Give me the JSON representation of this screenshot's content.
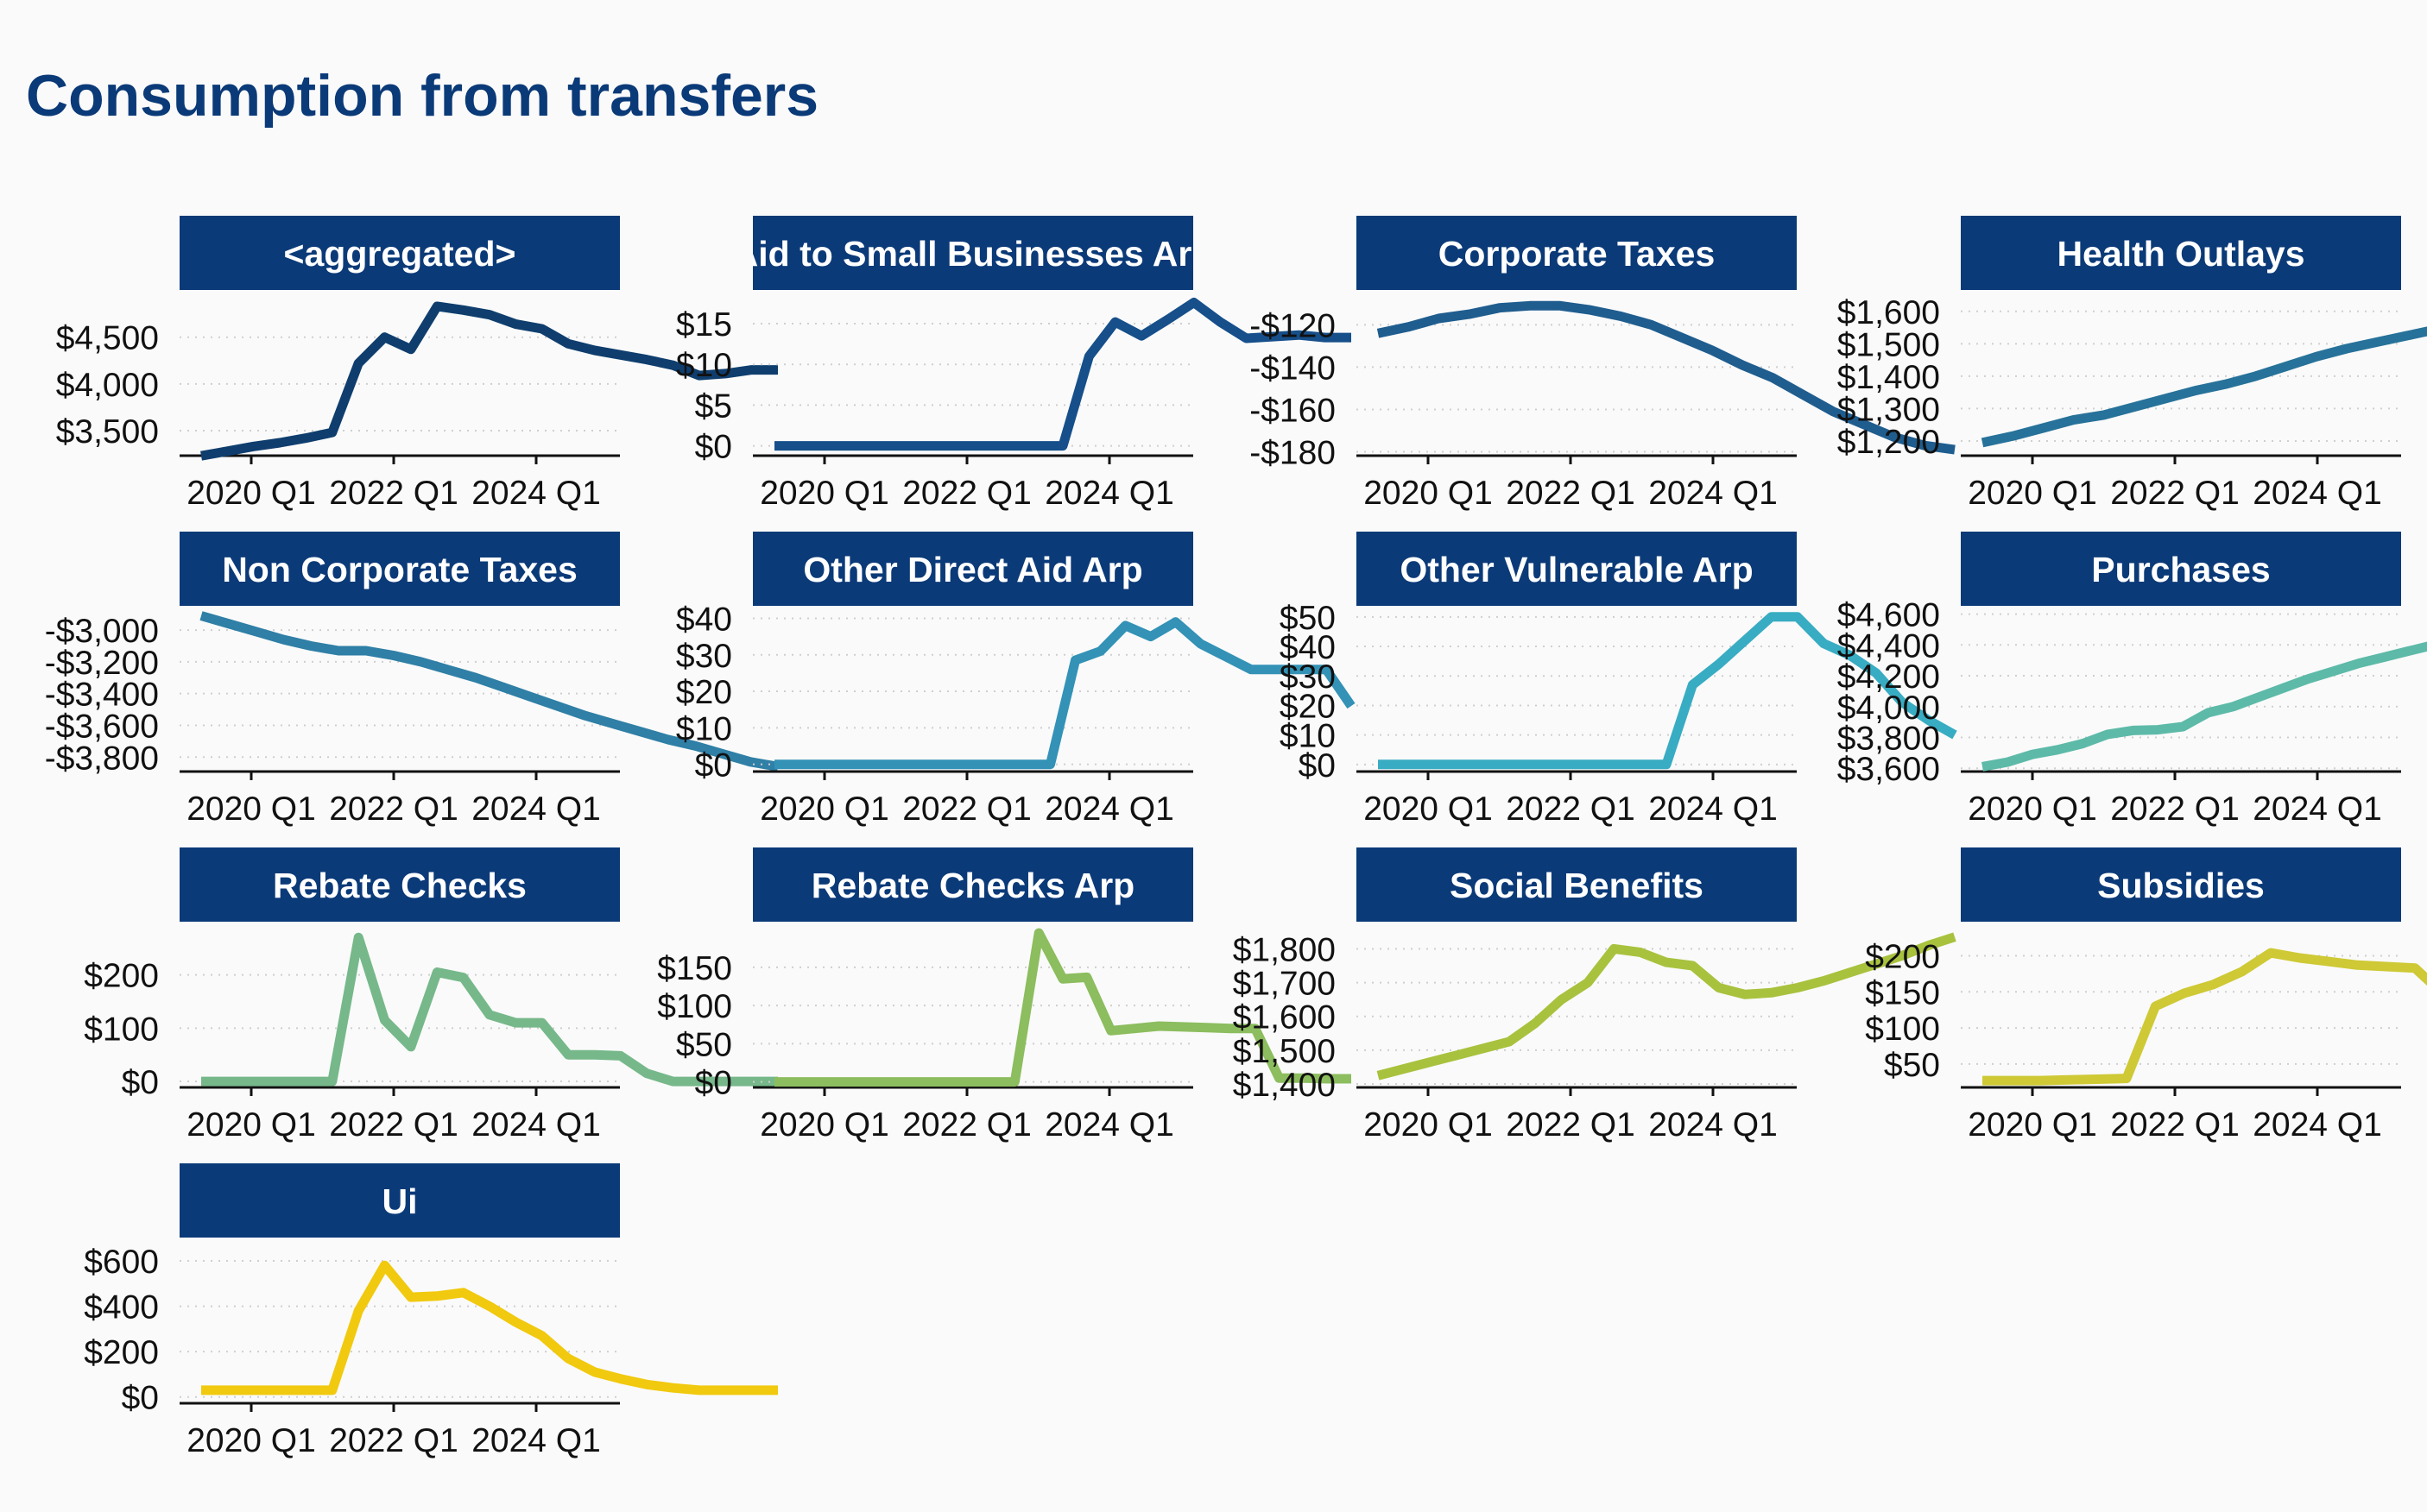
{
  "title": "Consumption from transfers",
  "chart_data": [
    {
      "type": "line",
      "title": "<aggregated>",
      "color": "#0f3e6e",
      "x_ticks": [
        "2020 Q1",
        "2022 Q1",
        "2024 Q1"
      ],
      "y_ticks": [
        "$3,500",
        "$4,000",
        "$4,500"
      ],
      "y_tick_values": [
        3500,
        4000,
        4500
      ],
      "ylim": [
        3250,
        4950
      ],
      "values": [
        3230,
        3280,
        3330,
        3370,
        3420,
        3480,
        4220,
        4500,
        4370,
        4830,
        4790,
        4740,
        4640,
        4590,
        4430,
        4360,
        4310,
        4260,
        4200,
        4090,
        4110,
        4150,
        4150
      ]
    },
    {
      "type": "line",
      "title": "Aid to Small Businesses Arp",
      "title_clipped": true,
      "color": "#164f8a",
      "x_ticks": [
        "2020 Q1",
        "2022 Q1",
        "2024 Q1"
      ],
      "y_ticks": [
        "$0",
        "$5",
        "$10",
        "$15"
      ],
      "y_tick_values": [
        0,
        5,
        10,
        15
      ],
      "ylim": [
        -1,
        18.5
      ],
      "values": [
        0,
        0,
        0,
        0,
        0,
        0,
        0,
        0,
        0,
        0,
        0,
        0,
        11,
        15.2,
        13.5,
        15.5,
        17.6,
        15.2,
        13.2,
        13.4,
        13.6,
        13.3,
        13.3
      ]
    },
    {
      "type": "line",
      "title": "Corporate Taxes",
      "color": "#1f5d8f",
      "x_ticks": [
        "2020 Q1",
        "2022 Q1",
        "2024 Q1"
      ],
      "y_ticks": [
        "-$120",
        "-$140",
        "-$160",
        "-$180"
      ],
      "y_tick_values": [
        -120,
        -140,
        -160,
        -180
      ],
      "ylim": [
        -181,
        -106
      ],
      "values": [
        -124,
        -121,
        -117,
        -115,
        -112,
        -111,
        -111,
        -113,
        -116,
        -120,
        -126,
        -132,
        -139,
        -145,
        -153,
        -161,
        -167,
        -173,
        -177,
        -179
      ]
    },
    {
      "type": "line",
      "title": "Health Outlays",
      "color": "#27729a",
      "x_ticks": [
        "2020 Q1",
        "2022 Q1",
        "2024 Q1"
      ],
      "y_ticks": [
        "$1,200",
        "$1,300",
        "$1,400",
        "$1,500",
        "$1,600"
      ],
      "y_tick_values": [
        1200,
        1300,
        1400,
        1500,
        1600
      ],
      "ylim": [
        1160,
        1650
      ],
      "values": [
        1195,
        1215,
        1240,
        1265,
        1280,
        1305,
        1330,
        1355,
        1375,
        1400,
        1430,
        1460,
        1485,
        1505,
        1525,
        1545,
        1565,
        1590,
        1625,
        1665
      ]
    },
    {
      "type": "line",
      "title": "Non Corporate Taxes",
      "color": "#2f7fa6",
      "x_ticks": [
        "2020 Q1",
        "2022 Q1",
        "2024 Q1"
      ],
      "y_ticks": [
        "-$3,000",
        "-$3,200",
        "-$3,400",
        "-$3,600",
        "-$3,800"
      ],
      "y_tick_values": [
        -3000,
        -3200,
        -3400,
        -3600,
        -3800
      ],
      "ylim": [
        -3880,
        -2880
      ],
      "values": [
        -2910,
        -2960,
        -3010,
        -3060,
        -3100,
        -3130,
        -3130,
        -3160,
        -3200,
        -3250,
        -3300,
        -3360,
        -3420,
        -3480,
        -3540,
        -3590,
        -3640,
        -3690,
        -3730,
        -3780,
        -3830,
        -3860
      ]
    },
    {
      "type": "line",
      "title": "Other Direct Aid Arp",
      "color": "#3392b6",
      "x_ticks": [
        "2020 Q1",
        "2022 Q1",
        "2024 Q1"
      ],
      "y_ticks": [
        "$0",
        "$10",
        "$20",
        "$30",
        "$40"
      ],
      "y_tick_values": [
        0,
        10,
        20,
        30,
        40
      ],
      "ylim": [
        -1.5,
        42
      ],
      "values": [
        0,
        0,
        0,
        0,
        0,
        0,
        0,
        0,
        0,
        0,
        0,
        0,
        28.5,
        31,
        38,
        35,
        39,
        33,
        29.5,
        26,
        26,
        26,
        26,
        16
      ]
    },
    {
      "type": "line",
      "title": "Other Vulnerable Arp",
      "color": "#38acc2",
      "x_ticks": [
        "2020 Q1",
        "2022 Q1",
        "2024 Q1"
      ],
      "y_ticks": [
        "$0",
        "$10",
        "$20",
        "$30",
        "$40",
        "$50"
      ],
      "y_tick_values": [
        0,
        10,
        20,
        30,
        40,
        50
      ],
      "ylim": [
        -1.8,
        52
      ],
      "values": [
        0,
        0,
        0,
        0,
        0,
        0,
        0,
        0,
        0,
        0,
        0,
        0,
        27,
        34,
        42,
        50,
        50,
        41,
        37,
        31,
        21,
        15,
        10
      ]
    },
    {
      "type": "line",
      "title": "Purchases",
      "color": "#5dbaa8",
      "x_ticks": [
        "2020 Q1",
        "2022 Q1",
        "2024 Q1"
      ],
      "y_ticks": [
        "$3,600",
        "$3,800",
        "$4,000",
        "$4,200",
        "$4,400",
        "$4,600"
      ],
      "y_tick_values": [
        3600,
        3800,
        4000,
        4200,
        4400,
        4600
      ],
      "ylim": [
        3590,
        4620
      ],
      "values": [
        3610,
        3640,
        3690,
        3720,
        3760,
        3820,
        3845,
        3850,
        3870,
        3960,
        4000,
        4060,
        4120,
        4180,
        4230,
        4280,
        4320,
        4360,
        4400,
        4440,
        4480,
        4520,
        4560,
        4580
      ]
    },
    {
      "type": "line",
      "title": "Rebate Checks",
      "color": "#76b88a",
      "x_ticks": [
        "2020 Q1",
        "2022 Q1",
        "2024 Q1"
      ],
      "y_ticks": [
        "$0",
        "$100",
        "$200"
      ],
      "y_tick_values": [
        0,
        100,
        200
      ],
      "ylim": [
        -8,
        290
      ],
      "values": [
        0,
        0,
        0,
        0,
        0,
        0,
        270,
        115,
        65,
        205,
        195,
        125,
        110,
        110,
        50,
        50,
        48,
        15,
        0,
        0,
        0,
        0,
        0
      ]
    },
    {
      "type": "line",
      "title": "Rebate Checks Arp",
      "color": "#8cbd5e",
      "x_ticks": [
        "2020 Q1",
        "2022 Q1",
        "2024 Q1"
      ],
      "y_ticks": [
        "$0",
        "$50",
        "$100",
        "$150"
      ],
      "y_tick_values": [
        0,
        50,
        100,
        150
      ],
      "ylim": [
        -5,
        203
      ],
      "values": [
        0,
        0,
        0,
        0,
        0,
        0,
        0,
        0,
        0,
        0,
        0,
        195,
        135,
        137,
        67,
        70,
        73,
        72,
        71,
        70,
        70,
        5,
        5,
        4,
        4
      ]
    },
    {
      "type": "line",
      "title": "Social Benefits",
      "color": "#a8c23e",
      "x_ticks": [
        "2020 Q1",
        "2022 Q1",
        "2024 Q1"
      ],
      "y_ticks": [
        "$1,400",
        "$1,500",
        "$1,600",
        "$1,700",
        "$1,800"
      ],
      "y_tick_values": [
        1400,
        1500,
        1600,
        1700,
        1800
      ],
      "ylim": [
        1395,
        1865
      ],
      "values": [
        1425,
        1445,
        1465,
        1485,
        1505,
        1525,
        1580,
        1650,
        1700,
        1800,
        1790,
        1760,
        1750,
        1685,
        1665,
        1670,
        1685,
        1705,
        1730,
        1755,
        1780,
        1810,
        1835
      ]
    },
    {
      "type": "line",
      "title": "Subsidies",
      "color": "#cec935",
      "x_ticks": [
        "2020 Q1",
        "2022 Q1",
        "2024 Q1"
      ],
      "y_ticks": [
        "$50",
        "$100",
        "$150",
        "$200"
      ],
      "y_tick_values": [
        50,
        100,
        150,
        200
      ],
      "ylim": [
        20,
        240
      ],
      "values": [
        27,
        27,
        27,
        28,
        29,
        30,
        130,
        148,
        160,
        178,
        204,
        197,
        192,
        187,
        185,
        183,
        146,
        104,
        86,
        76,
        56
      ]
    },
    {
      "type": "line",
      "title": "Ui",
      "color": "#f1c90e",
      "x_ticks": [
        "2020 Q1",
        "2022 Q1",
        "2024 Q1"
      ],
      "y_ticks": [
        "$0",
        "$200",
        "$400",
        "$600"
      ],
      "y_tick_values": [
        0,
        200,
        400,
        600
      ],
      "ylim": [
        -20,
        680
      ],
      "values": [
        30,
        30,
        30,
        30,
        30,
        30,
        380,
        580,
        440,
        445,
        460,
        400,
        330,
        270,
        170,
        110,
        80,
        55,
        40,
        30,
        30,
        30,
        30
      ]
    }
  ]
}
